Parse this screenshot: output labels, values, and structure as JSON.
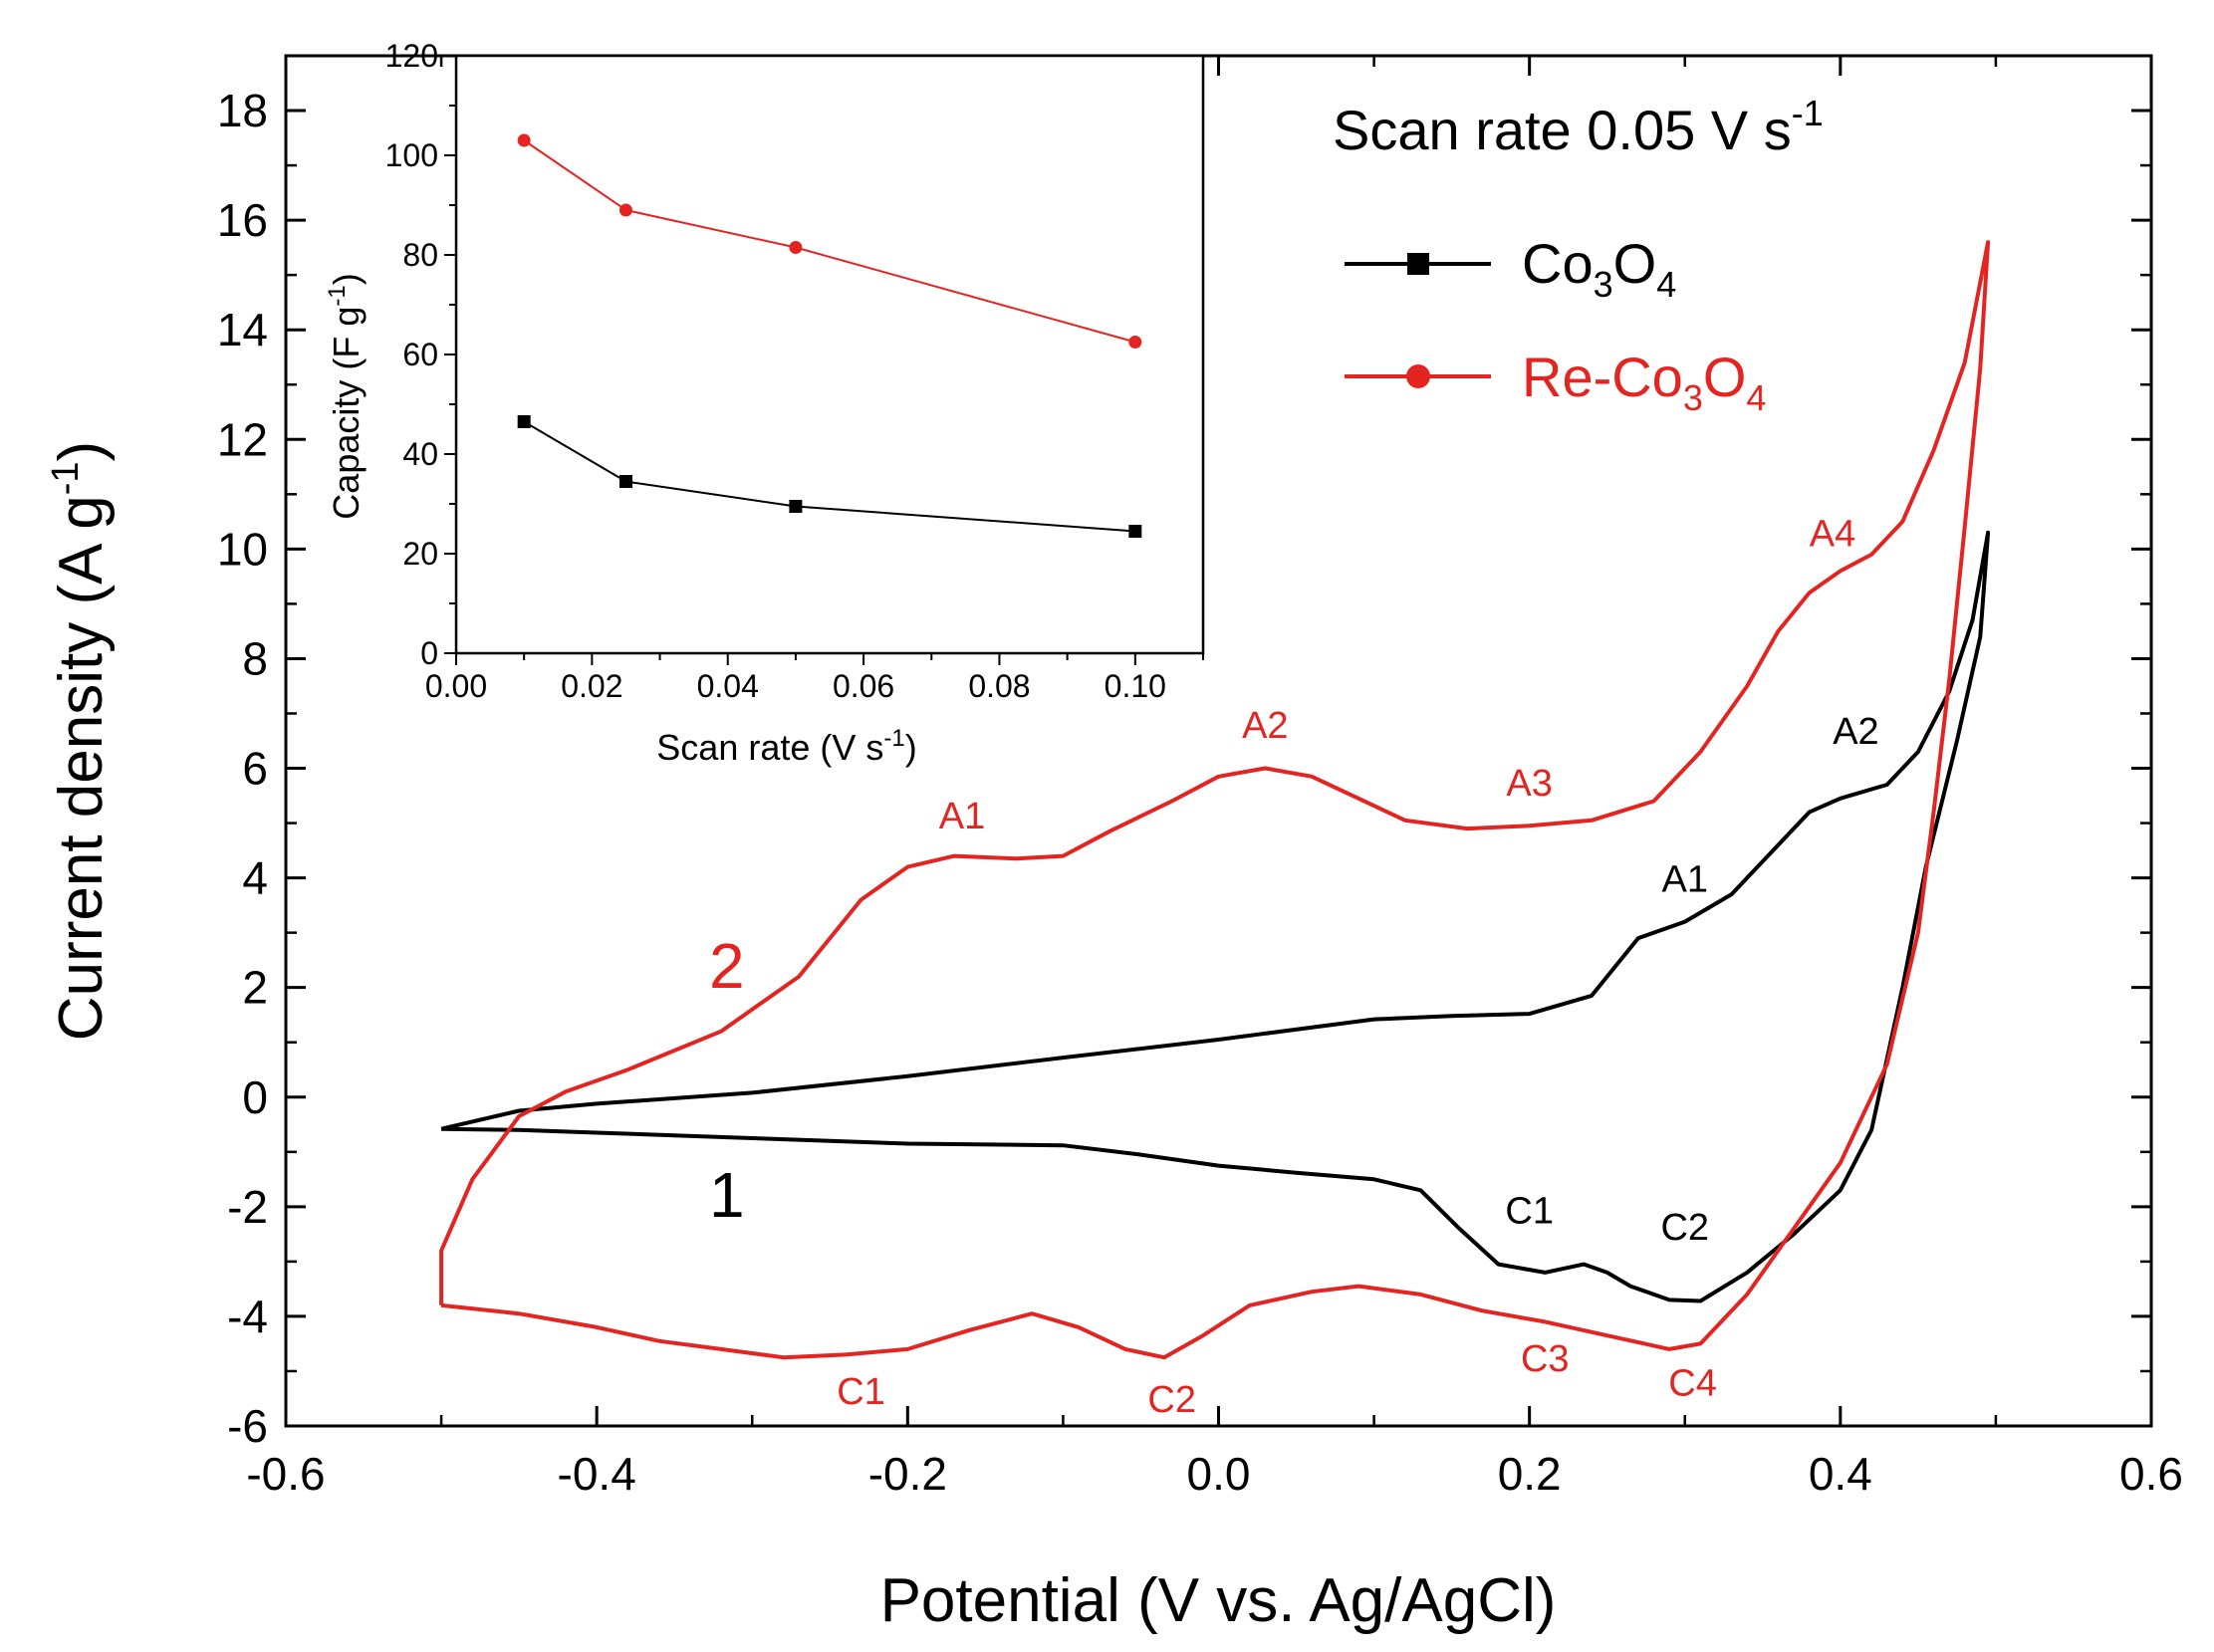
{
  "colors": {
    "co3o4": "#000000",
    "re_co3o4": "#e32421",
    "axis": "#000000"
  },
  "chart_data": [
    {
      "type": "line",
      "title": "Scan rate 0.05 V s-1",
      "title_parts": {
        "main": "Scan rate 0.05 V s",
        "sup": "-1"
      },
      "xlabel": "Potential (V vs. Ag/AgCl)",
      "ylabel_parts": {
        "main": "Current density (A g",
        "sup": "-1",
        "end": ")"
      },
      "xlim": [
        -0.6,
        0.6
      ],
      "ylim": [
        -6,
        19
      ],
      "xticks": [
        "-0.6",
        "-0.4",
        "-0.2",
        "0.0",
        "0.2",
        "0.4",
        "0.6"
      ],
      "yticks": [
        "-6",
        "-4",
        "-2",
        "0",
        "2",
        "4",
        "6",
        "8",
        "10",
        "12",
        "14",
        "16",
        "18"
      ],
      "legend_position": "top-right",
      "legend": [
        {
          "key": "co3o4",
          "parts": [
            "Co",
            "3",
            "O",
            "4"
          ]
        },
        {
          "key": "re_co3o4",
          "parts": [
            "Re-Co",
            "3",
            "O",
            "4"
          ]
        }
      ],
      "series": [
        {
          "name": "Co3O4",
          "id_label": "1",
          "points": [
            [
              -0.5,
              -0.58
            ],
            [
              -0.45,
              -0.25
            ],
            [
              -0.4,
              -0.12
            ],
            [
              -0.3,
              0.08
            ],
            [
              -0.2,
              0.38
            ],
            [
              -0.1,
              0.72
            ],
            [
              0.0,
              1.05
            ],
            [
              0.1,
              1.42
            ],
            [
              0.15,
              1.48
            ],
            [
              0.2,
              1.52
            ],
            [
              0.24,
              1.85
            ],
            [
              0.27,
              2.9
            ],
            [
              0.3,
              3.2
            ],
            [
              0.33,
              3.7
            ],
            [
              0.36,
              4.6
            ],
            [
              0.38,
              5.2
            ],
            [
              0.4,
              5.45
            ],
            [
              0.43,
              5.7
            ],
            [
              0.45,
              6.3
            ],
            [
              0.47,
              7.4
            ],
            [
              0.485,
              8.7
            ],
            [
              0.495,
              10.3
            ],
            [
              0.49,
              8.4
            ],
            [
              0.475,
              6.5
            ],
            [
              0.455,
              4.2
            ],
            [
              0.44,
              2.0
            ],
            [
              0.42,
              -0.6
            ],
            [
              0.4,
              -1.7
            ],
            [
              0.37,
              -2.5
            ],
            [
              0.34,
              -3.2
            ],
            [
              0.31,
              -3.72
            ],
            [
              0.29,
              -3.7
            ],
            [
              0.265,
              -3.45
            ],
            [
              0.25,
              -3.2
            ],
            [
              0.235,
              -3.05
            ],
            [
              0.21,
              -3.2
            ],
            [
              0.18,
              -3.05
            ],
            [
              0.155,
              -2.4
            ],
            [
              0.13,
              -1.7
            ],
            [
              0.1,
              -1.5
            ],
            [
              0.05,
              -1.38
            ],
            [
              0.0,
              -1.25
            ],
            [
              -0.05,
              -1.05
            ],
            [
              -0.1,
              -0.88
            ],
            [
              -0.2,
              -0.85
            ],
            [
              -0.3,
              -0.75
            ],
            [
              -0.4,
              -0.65
            ],
            [
              -0.45,
              -0.6
            ],
            [
              -0.5,
              -0.58
            ]
          ]
        },
        {
          "name": "Re-Co3O4",
          "id_label": "2",
          "points": [
            [
              -0.5,
              -3.8
            ],
            [
              -0.5,
              -2.8
            ],
            [
              -0.48,
              -1.5
            ],
            [
              -0.45,
              -0.35
            ],
            [
              -0.42,
              0.1
            ],
            [
              -0.38,
              0.5
            ],
            [
              -0.32,
              1.2
            ],
            [
              -0.27,
              2.2
            ],
            [
              -0.23,
              3.6
            ],
            [
              -0.2,
              4.2
            ],
            [
              -0.17,
              4.4
            ],
            [
              -0.13,
              4.35
            ],
            [
              -0.1,
              4.4
            ],
            [
              -0.07,
              4.85
            ],
            [
              -0.03,
              5.4
            ],
            [
              0.0,
              5.85
            ],
            [
              0.03,
              6.0
            ],
            [
              0.06,
              5.85
            ],
            [
              0.09,
              5.45
            ],
            [
              0.12,
              5.05
            ],
            [
              0.16,
              4.9
            ],
            [
              0.2,
              4.95
            ],
            [
              0.24,
              5.05
            ],
            [
              0.28,
              5.4
            ],
            [
              0.31,
              6.3
            ],
            [
              0.34,
              7.5
            ],
            [
              0.36,
              8.5
            ],
            [
              0.38,
              9.2
            ],
            [
              0.4,
              9.6
            ],
            [
              0.42,
              9.9
            ],
            [
              0.44,
              10.5
            ],
            [
              0.46,
              11.8
            ],
            [
              0.48,
              13.4
            ],
            [
              0.495,
              15.6
            ],
            [
              0.49,
              13.3
            ],
            [
              0.48,
              10.4
            ],
            [
              0.47,
              7.6
            ],
            [
              0.46,
              5.2
            ],
            [
              0.45,
              3.0
            ],
            [
              0.43,
              0.6
            ],
            [
              0.4,
              -1.2
            ],
            [
              0.37,
              -2.4
            ],
            [
              0.34,
              -3.6
            ],
            [
              0.31,
              -4.5
            ],
            [
              0.29,
              -4.6
            ],
            [
              0.25,
              -4.35
            ],
            [
              0.21,
              -4.1
            ],
            [
              0.17,
              -3.9
            ],
            [
              0.13,
              -3.6
            ],
            [
              0.09,
              -3.45
            ],
            [
              0.06,
              -3.55
            ],
            [
              0.02,
              -3.8
            ],
            [
              -0.01,
              -4.35
            ],
            [
              -0.035,
              -4.75
            ],
            [
              -0.06,
              -4.6
            ],
            [
              -0.09,
              -4.2
            ],
            [
              -0.12,
              -3.95
            ],
            [
              -0.16,
              -4.25
            ],
            [
              -0.2,
              -4.6
            ],
            [
              -0.24,
              -4.7
            ],
            [
              -0.28,
              -4.75
            ],
            [
              -0.32,
              -4.6
            ],
            [
              -0.36,
              -4.45
            ],
            [
              -0.4,
              -4.2
            ],
            [
              -0.45,
              -3.95
            ],
            [
              -0.5,
              -3.8
            ]
          ]
        }
      ],
      "annotations": [
        {
          "series": "re_co3o4",
          "text": "A1",
          "x": -0.165,
          "y": 4.9
        },
        {
          "series": "re_co3o4",
          "text": "A2",
          "x": 0.03,
          "y": 6.55
        },
        {
          "series": "re_co3o4",
          "text": "A3",
          "x": 0.2,
          "y": 5.5
        },
        {
          "series": "re_co3o4",
          "text": "A4",
          "x": 0.395,
          "y": 10.05
        },
        {
          "series": "re_co3o4",
          "text": "C1",
          "x": -0.23,
          "y": -5.6
        },
        {
          "series": "re_co3o4",
          "text": "C2",
          "x": -0.03,
          "y": -5.75
        },
        {
          "series": "re_co3o4",
          "text": "C3",
          "x": -0.0,
          "y": -5.0,
          "x_override": 0.21
        },
        {
          "series": "re_co3o4",
          "text": "C4",
          "x": 0.305,
          "y": -5.45
        },
        {
          "series": "co3o4",
          "text": "A1",
          "x": 0.3,
          "y": 3.75
        },
        {
          "series": "co3o4",
          "text": "A2",
          "x": 0.41,
          "y": 6.45
        },
        {
          "series": "co3o4",
          "text": "C1",
          "x": 0.2,
          "y": -2.3
        },
        {
          "series": "co3o4",
          "text": "C2",
          "x": 0.3,
          "y": -2.6
        }
      ]
    },
    {
      "type": "line",
      "title": "",
      "xlabel_parts": {
        "main": "Scan rate (V s",
        "sup": "-1",
        "end": ")"
      },
      "ylabel_parts": {
        "main": "Capacity (F g",
        "sup": "-1",
        "end": ")"
      },
      "xlim": [
        0.0,
        0.11
      ],
      "ylim": [
        0,
        120
      ],
      "xticks": [
        "0.00",
        "0.02",
        "0.04",
        "0.06",
        "0.08",
        "0.10"
      ],
      "yticks": [
        "0",
        "20",
        "40",
        "60",
        "80",
        "100",
        "120"
      ],
      "series": [
        {
          "name": "Re-Co3O4",
          "x": [
            0.01,
            0.025,
            0.05,
            0.1
          ],
          "values": [
            103,
            89,
            81.5,
            62.5
          ]
        },
        {
          "name": "Co3O4",
          "x": [
            0.01,
            0.025,
            0.05,
            0.1
          ],
          "values": [
            46.5,
            34.5,
            29.5,
            24.5
          ]
        }
      ]
    }
  ]
}
